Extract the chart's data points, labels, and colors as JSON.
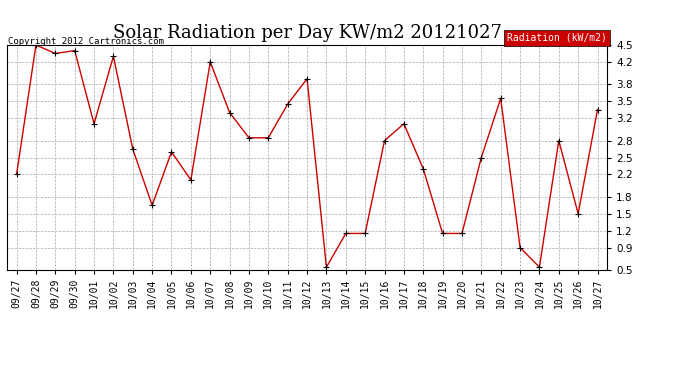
{
  "title": "Solar Radiation per Day KW/m2 20121027",
  "copyright_text": "Copyright 2012 Cartronics.com",
  "legend_label": "Radiation (kW/m2)",
  "x_labels": [
    "09/27",
    "09/28",
    "09/29",
    "09/30",
    "10/01",
    "10/02",
    "10/03",
    "10/04",
    "10/05",
    "10/06",
    "10/07",
    "10/08",
    "10/09",
    "10/10",
    "10/11",
    "10/12",
    "10/13",
    "10/14",
    "10/15",
    "10/16",
    "10/17",
    "10/18",
    "10/19",
    "10/20",
    "10/21",
    "10/22",
    "10/23",
    "10/24",
    "10/25",
    "10/26",
    "10/27"
  ],
  "y_values": [
    2.2,
    4.5,
    4.35,
    4.4,
    3.1,
    4.3,
    2.65,
    1.65,
    2.6,
    2.1,
    4.2,
    3.3,
    2.85,
    2.85,
    3.45,
    3.9,
    0.55,
    1.15,
    1.15,
    2.8,
    3.1,
    2.3,
    1.15,
    1.15,
    2.5,
    3.55,
    0.9,
    0.55,
    2.8,
    1.5,
    3.35
  ],
  "line_color": "#cc0000",
  "marker_color": "#000000",
  "bg_color": "#ffffff",
  "plot_bg_color": "#ffffff",
  "grid_color": "#aaaaaa",
  "ylim": [
    0.5,
    4.5
  ],
  "yticks": [
    0.5,
    0.9,
    1.2,
    1.5,
    1.8,
    2.2,
    2.5,
    2.8,
    3.2,
    3.5,
    3.8,
    4.2,
    4.5
  ],
  "legend_bg": "#cc0000",
  "legend_fg": "#ffffff",
  "title_fontsize": 13,
  "copyright_fontsize": 6.5,
  "tick_fontsize": 7,
  "ytick_fontsize": 7.5
}
